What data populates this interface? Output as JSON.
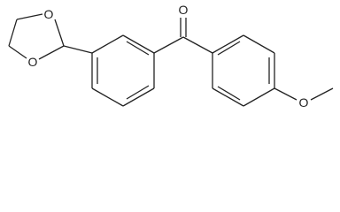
{
  "atoms": [
    {
      "label": "O"
    },
    {
      "label": "O"
    },
    {
      "label": "O"
    },
    {
      "label": "O"
    }
  ]
}
